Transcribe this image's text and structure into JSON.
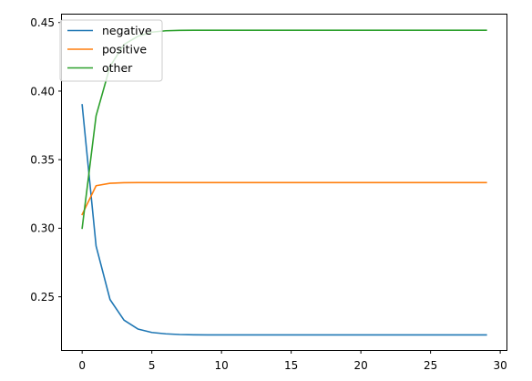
{
  "chart_data": {
    "type": "line",
    "title": "",
    "xlabel": "",
    "ylabel": "",
    "xlim": [
      -1.45,
      30.45
    ],
    "ylim": [
      0.2112,
      0.4558
    ],
    "grid": false,
    "x_ticks": [
      0,
      5,
      10,
      15,
      20,
      25,
      30
    ],
    "y_ticks": [
      0.25,
      0.3,
      0.35,
      0.4,
      0.45
    ],
    "x_tick_labels": [
      "0",
      "5",
      "10",
      "15",
      "20",
      "25",
      "30"
    ],
    "y_tick_labels": [
      "0.25",
      "0.30",
      "0.35",
      "0.40",
      "0.45"
    ],
    "legend_position": "top-left",
    "x": [
      0,
      1,
      2,
      3,
      4,
      5,
      6,
      7,
      8,
      9,
      10,
      11,
      12,
      13,
      14,
      15,
      16,
      17,
      18,
      19,
      20,
      21,
      22,
      23,
      24,
      25,
      26,
      27,
      28,
      29
    ],
    "series": [
      {
        "name": "negative",
        "color": "#1f77b4",
        "values": [
          0.39,
          0.287,
          0.248,
          0.233,
          0.2265,
          0.224,
          0.223,
          0.2225,
          0.2223,
          0.2222,
          0.2222,
          0.2222,
          0.2222,
          0.2222,
          0.2222,
          0.2222,
          0.2222,
          0.2222,
          0.2222,
          0.2222,
          0.2222,
          0.2222,
          0.2222,
          0.2222,
          0.2222,
          0.2222,
          0.2222,
          0.2222,
          0.2222,
          0.2222
        ]
      },
      {
        "name": "positive",
        "color": "#ff7f0e",
        "values": [
          0.31,
          0.331,
          0.3328,
          0.3332,
          0.3333,
          0.3333,
          0.3333,
          0.3333,
          0.3333,
          0.3333,
          0.3333,
          0.3333,
          0.3333,
          0.3333,
          0.3333,
          0.3333,
          0.3333,
          0.3333,
          0.3333,
          0.3333,
          0.3333,
          0.3333,
          0.3333,
          0.3333,
          0.3333,
          0.3333,
          0.3333,
          0.3333,
          0.3333,
          0.3333
        ]
      },
      {
        "name": "other",
        "color": "#2ca02c",
        "values": [
          0.3,
          0.382,
          0.418,
          0.434,
          0.44,
          0.443,
          0.444,
          0.4443,
          0.4444,
          0.4444,
          0.4444,
          0.4444,
          0.4444,
          0.4444,
          0.4444,
          0.4444,
          0.4444,
          0.4444,
          0.4444,
          0.4444,
          0.4444,
          0.4444,
          0.4444,
          0.4444,
          0.4444,
          0.4444,
          0.4444,
          0.4444,
          0.4444,
          0.4444
        ]
      }
    ]
  }
}
